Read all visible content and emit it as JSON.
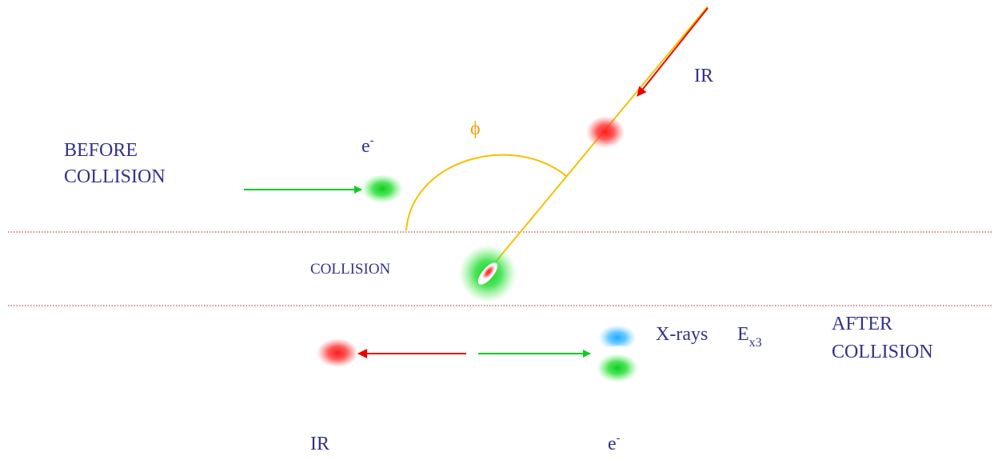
{
  "labels": {
    "ir_top": "IR",
    "phi": "ϕ",
    "before": [
      "BEFORE",
      "COLLISION"
    ],
    "electron_top": {
      "base": "e",
      "sup": "-"
    },
    "collision": "COLLISION",
    "xrays": "X-rays",
    "energy": {
      "base": "E",
      "sub": "x3"
    },
    "after": [
      "AFTER",
      "COLLISION"
    ],
    "ir_bottom": "IR",
    "electron_bottom": {
      "base": "e",
      "sup": "-"
    }
  }
}
